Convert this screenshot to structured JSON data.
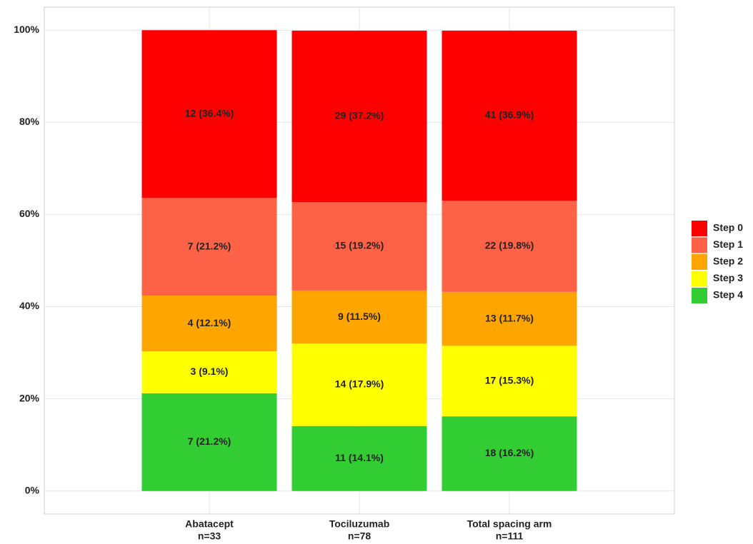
{
  "chart_data": {
    "type": "stacked_bar",
    "categories": [
      "Abatacept",
      "Tociluzumab",
      "Total spacing arm"
    ],
    "category_notes": [
      "n=33",
      "n=78",
      "n=111"
    ],
    "series": [
      {
        "name": "Step 0",
        "color": "#ff0000",
        "values": [
          36.4,
          37.2,
          36.9
        ],
        "value_labels": [
          "12 (36.4%)",
          "29 (37.2%)",
          "41 (36.9%)"
        ]
      },
      {
        "name": "Step 1",
        "color": "#ff6347",
        "values": [
          21.2,
          19.2,
          19.8
        ],
        "value_labels": [
          "7 (21.2%)",
          "15 (19.2%)",
          "22 (19.8%)"
        ]
      },
      {
        "name": "Step 2",
        "color": "#ffa500",
        "values": [
          12.1,
          11.5,
          11.7
        ],
        "value_labels": [
          "4 (12.1%)",
          "9 (11.5%)",
          "13 (11.7%)"
        ]
      },
      {
        "name": "Step 3",
        "color": "#ffff00",
        "values": [
          9.1,
          17.9,
          15.3
        ],
        "value_labels": [
          "3 (9.1%)",
          "14 (17.9%)",
          "17 (15.3%)"
        ]
      },
      {
        "name": "Step 4",
        "color": "#32cd32",
        "values": [
          21.2,
          14.1,
          16.2
        ],
        "value_labels": [
          "7 (21.2%)",
          "11 (14.1%)",
          "18 (16.2%)"
        ]
      }
    ],
    "ylim": [
      -5,
      105
    ],
    "yticks": [
      {
        "value": 0,
        "label": "0%"
      },
      {
        "value": 20,
        "label": "20%"
      },
      {
        "value": 40,
        "label": "40%"
      },
      {
        "value": 60,
        "label": "60%"
      },
      {
        "value": 80,
        "label": "80%"
      },
      {
        "value": 100,
        "label": "100%"
      }
    ],
    "grid": true,
    "legend": "right"
  }
}
